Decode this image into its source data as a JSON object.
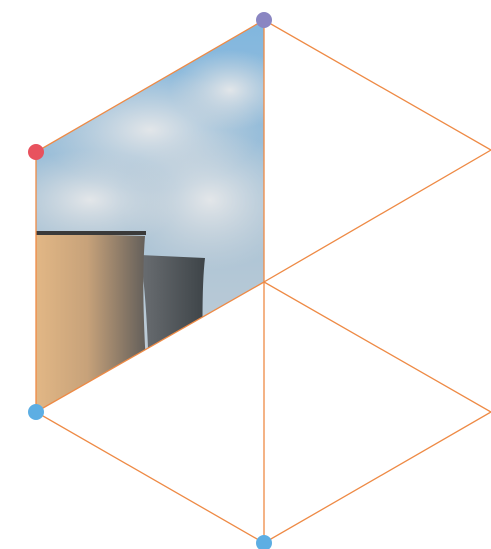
{
  "nodes": [
    {
      "color": "#8a86c2"
    },
    {
      "color": "#e8525e"
    },
    {
      "color": "#5daee3"
    },
    {
      "color": "#5daee3"
    }
  ]
}
